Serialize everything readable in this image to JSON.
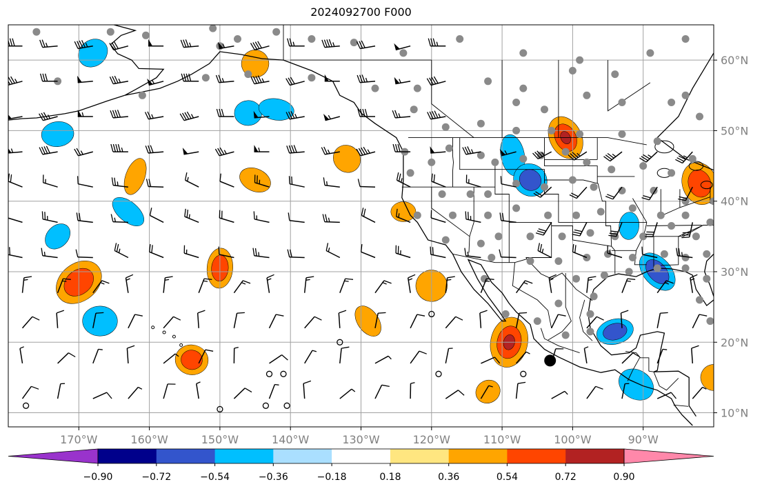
{
  "title": "2024092700 F000",
  "map": {
    "lon_range": [
      -180,
      -80
    ],
    "lat_range": [
      8,
      65
    ],
    "lon_ticks": [
      {
        "value": -170,
        "label": "170°W"
      },
      {
        "value": -160,
        "label": "160°W"
      },
      {
        "value": -150,
        "label": "150°W"
      },
      {
        "value": -140,
        "label": "140°W"
      },
      {
        "value": -130,
        "label": "130°W"
      },
      {
        "value": -120,
        "label": "120°W"
      },
      {
        "value": -110,
        "label": "110°W"
      },
      {
        "value": -100,
        "label": "100°W"
      },
      {
        "value": -90,
        "label": "90°W"
      }
    ],
    "lat_ticks": [
      {
        "value": 10,
        "label": "10°N"
      },
      {
        "value": 20,
        "label": "20°N"
      },
      {
        "value": 30,
        "label": "30°N"
      },
      {
        "value": 40,
        "label": "40°N"
      },
      {
        "value": 50,
        "label": "50°N"
      },
      {
        "value": 60,
        "label": "60°N"
      }
    ],
    "features": [
      "coastlines",
      "state-boundaries",
      "wind-barbs",
      "station-markers",
      "gridlines"
    ]
  },
  "colorbar": {
    "colors": [
      "#9933cc",
      "#00008b",
      "#3355cc",
      "#00bfff",
      "#aadfff",
      "#ffffff",
      "#ffe680",
      "#ffa500",
      "#ff4500",
      "#b22222",
      "#ff88aa"
    ],
    "labels": [
      "−0.90",
      "−0.72",
      "−0.54",
      "−0.36",
      "−0.18",
      "0.18",
      "0.36",
      "0.54",
      "0.72",
      "0.90"
    ]
  },
  "chart_data": {
    "type": "heatmap",
    "title": "2024092700 F000",
    "xlabel": "",
    "ylabel": "",
    "xlim": [
      -180,
      -80
    ],
    "ylim": [
      8,
      65
    ],
    "grid": true,
    "anomaly_blobs": [
      {
        "lon": -124,
        "lat": 38.5,
        "value": 0.45
      },
      {
        "lon": -132,
        "lat": 46,
        "value": 0.4
      },
      {
        "lon": -150,
        "lat": 30.5,
        "value": 0.6
      },
      {
        "lon": -170,
        "lat": 28.5,
        "value": 0.7
      },
      {
        "lon": -154,
        "lat": 17.5,
        "value": 0.65
      },
      {
        "lon": -129,
        "lat": 23,
        "value": 0.5
      },
      {
        "lon": -109,
        "lat": 20,
        "value": 0.8
      },
      {
        "lon": -112,
        "lat": 13,
        "value": 0.45
      },
      {
        "lon": -120,
        "lat": 28,
        "value": 0.5
      },
      {
        "lon": -101,
        "lat": 49,
        "value": 0.72
      },
      {
        "lon": -162,
        "lat": 43.5,
        "value": 0.4
      },
      {
        "lon": -145,
        "lat": 59.5,
        "value": 0.45
      },
      {
        "lon": -145,
        "lat": 43,
        "value": 0.45
      },
      {
        "lon": -82,
        "lat": 42.5,
        "value": 0.6
      },
      {
        "lon": -80,
        "lat": 15,
        "value": 0.5
      },
      {
        "lon": -94,
        "lat": 21.5,
        "value": -0.7
      },
      {
        "lon": -91,
        "lat": 14,
        "value": -0.5
      },
      {
        "lon": -108.5,
        "lat": 46.5,
        "value": -0.5
      },
      {
        "lon": -106,
        "lat": 43,
        "value": -0.6
      },
      {
        "lon": -173,
        "lat": 49.5,
        "value": -0.45
      },
      {
        "lon": -163,
        "lat": 38.5,
        "value": -0.45
      },
      {
        "lon": -146,
        "lat": 52.5,
        "value": -0.45
      },
      {
        "lon": -173,
        "lat": 35,
        "value": -0.4
      },
      {
        "lon": -167,
        "lat": 23,
        "value": -0.45
      },
      {
        "lon": -88,
        "lat": 30,
        "value": -0.55
      },
      {
        "lon": -92,
        "lat": 36.5,
        "value": -0.45
      },
      {
        "lon": -168,
        "lat": 61,
        "value": -0.4
      },
      {
        "lon": -142,
        "lat": 53,
        "value": -0.4
      }
    ]
  }
}
